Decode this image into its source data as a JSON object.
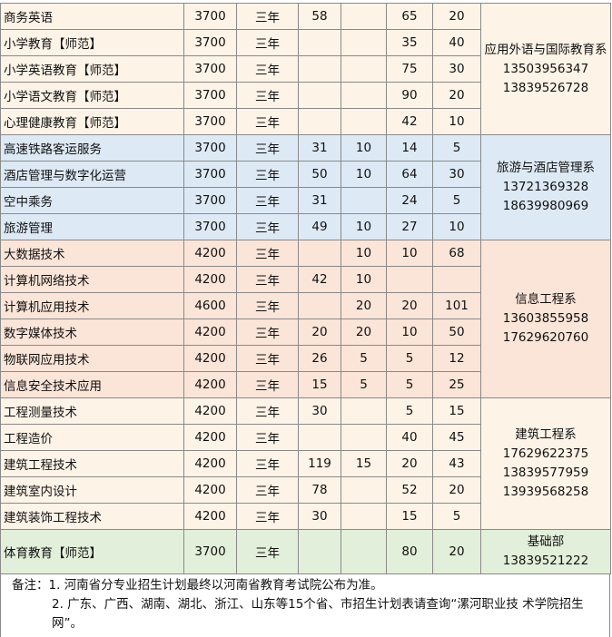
{
  "groups": [
    {
      "rows": [
        [
          "商务英语",
          3700,
          "三年",
          58,
          null,
          65,
          20
        ],
        [
          "小学教育【师范】",
          3700,
          "三年",
          null,
          null,
          35,
          40
        ],
        [
          "小学英语教育【师范】",
          3700,
          "三年",
          null,
          null,
          75,
          30
        ],
        [
          "小学语文教育【师范】",
          3700,
          "三年",
          null,
          null,
          90,
          20
        ],
        [
          "心理健康教育【师范】",
          3700,
          "三年",
          null,
          null,
          42,
          10
        ]
      ],
      "department": {
        "name": "应用外语与国际教育系",
        "phones": [
          "13503956347",
          "13839526728"
        ]
      }
    },
    {
      "rows": [
        [
          "高速铁路客运服务",
          3700,
          "三年",
          31,
          10,
          14,
          5
        ],
        [
          "酒店管理与数字化运营",
          3700,
          "三年",
          50,
          10,
          64,
          30
        ],
        [
          "空中乘务",
          3700,
          "三年",
          31,
          null,
          24,
          5
        ],
        [
          "旅游管理",
          3700,
          "三年",
          49,
          10,
          27,
          10
        ]
      ],
      "department": {
        "name": "旅游与酒店管理系",
        "phones": [
          "13721369328",
          "18639980969"
        ]
      }
    },
    {
      "rows": [
        [
          "大数据技术",
          4200,
          "三年",
          null,
          10,
          10,
          68
        ],
        [
          "计算机网络技术",
          4200,
          "三年",
          42,
          10,
          null,
          null
        ],
        [
          "计算机应用技术",
          4600,
          "三年",
          null,
          20,
          20,
          101
        ],
        [
          "数字媒体技术",
          4200,
          "三年",
          20,
          20,
          10,
          50
        ],
        [
          "物联网应用技术",
          4200,
          "三年",
          26,
          5,
          5,
          12
        ],
        [
          "信息安全技术应用",
          4200,
          "三年",
          15,
          5,
          5,
          25
        ]
      ],
      "department": {
        "name": "信息工程系",
        "phones": [
          "13603855958",
          "17629620760"
        ]
      }
    },
    {
      "rows": [
        [
          "工程测量技术",
          4200,
          "三年",
          30,
          null,
          5,
          15
        ],
        [
          "工程造价",
          4200,
          "三年",
          null,
          null,
          40,
          45
        ],
        [
          "建筑工程技术",
          4200,
          "三年",
          119,
          15,
          20,
          43
        ],
        [
          "建筑室内设计",
          4200,
          "三年",
          78,
          null,
          52,
          20
        ],
        [
          "建筑装饰工程技术",
          4200,
          "三年",
          30,
          null,
          15,
          5
        ]
      ],
      "department": {
        "name": "建筑工程系",
        "phones": [
          "17629622375",
          "13839577959",
          "13939568258"
        ]
      }
    },
    {
      "rows": [
        [
          "体育教育【师范】",
          3700,
          "三年",
          null,
          null,
          80,
          20
        ]
      ],
      "department": {
        "name": "基础部",
        "phones": [
          "13839521222"
        ]
      }
    }
  ],
  "notes": {
    "label": "备注：",
    "items": [
      "1. 河南省分专业招生计划最终以河南省教育考试院公布为准。",
      "2. 广东、广西、湖南、湖北、浙江、山东等15个省、市招生计划表请查询“漯河职业技 术学院招生网”。"
    ]
  }
}
